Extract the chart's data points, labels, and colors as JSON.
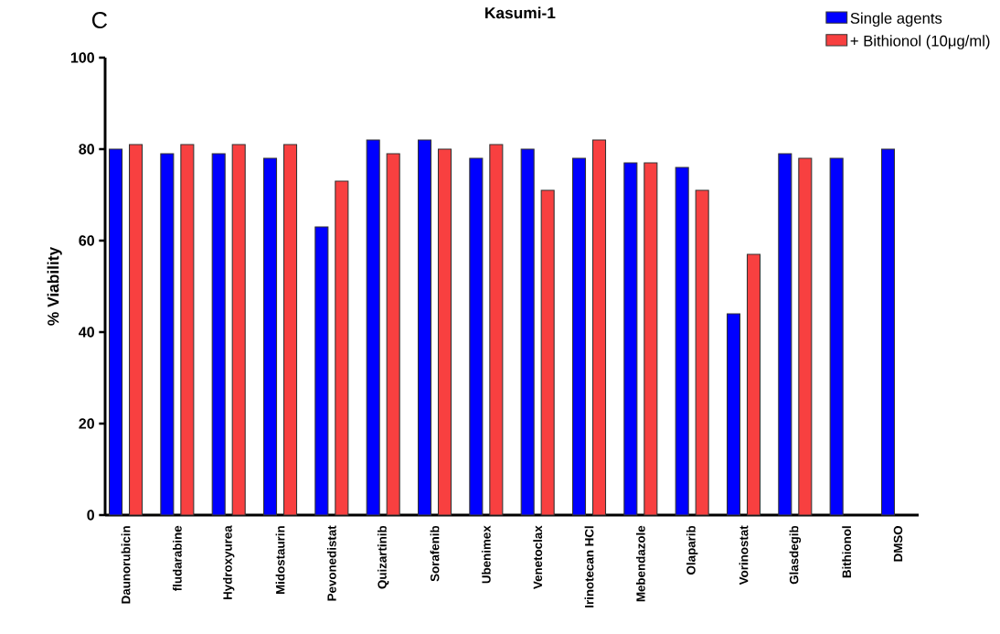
{
  "chart_data": {
    "type": "bar",
    "title": "Kasumi-1",
    "ylabel": "% Viability",
    "annotations": [
      "C"
    ],
    "categories": [
      "Daunorubicin",
      "fludarabine",
      "Hydroxyurea",
      "Midostaurin",
      "Pevonedistat",
      "Quizartinib",
      "Sorafenib",
      "Ubenimex",
      "Venetoclax",
      "Irinotecan HCl",
      "Mebendazole",
      "Olaparib",
      "Vorinostat",
      "Glasdegib",
      "Bithionol",
      "DMSO"
    ],
    "series": [
      {
        "name": "Single agents",
        "color": "#0000ff",
        "values": [
          80,
          79,
          79,
          78,
          63,
          82,
          82,
          78,
          80,
          78,
          77,
          76,
          44,
          79,
          78,
          80
        ]
      },
      {
        "name": "+ Bithionol (10μg/ml)",
        "color": "#f84040",
        "values": [
          81,
          81,
          81,
          81,
          73,
          79,
          80,
          81,
          71,
          82,
          77,
          71,
          57,
          78,
          null,
          null
        ]
      }
    ],
    "ylim": [
      0,
      100
    ],
    "yticks": [
      0,
      20,
      40,
      60,
      80,
      100
    ],
    "legend": "top right"
  }
}
